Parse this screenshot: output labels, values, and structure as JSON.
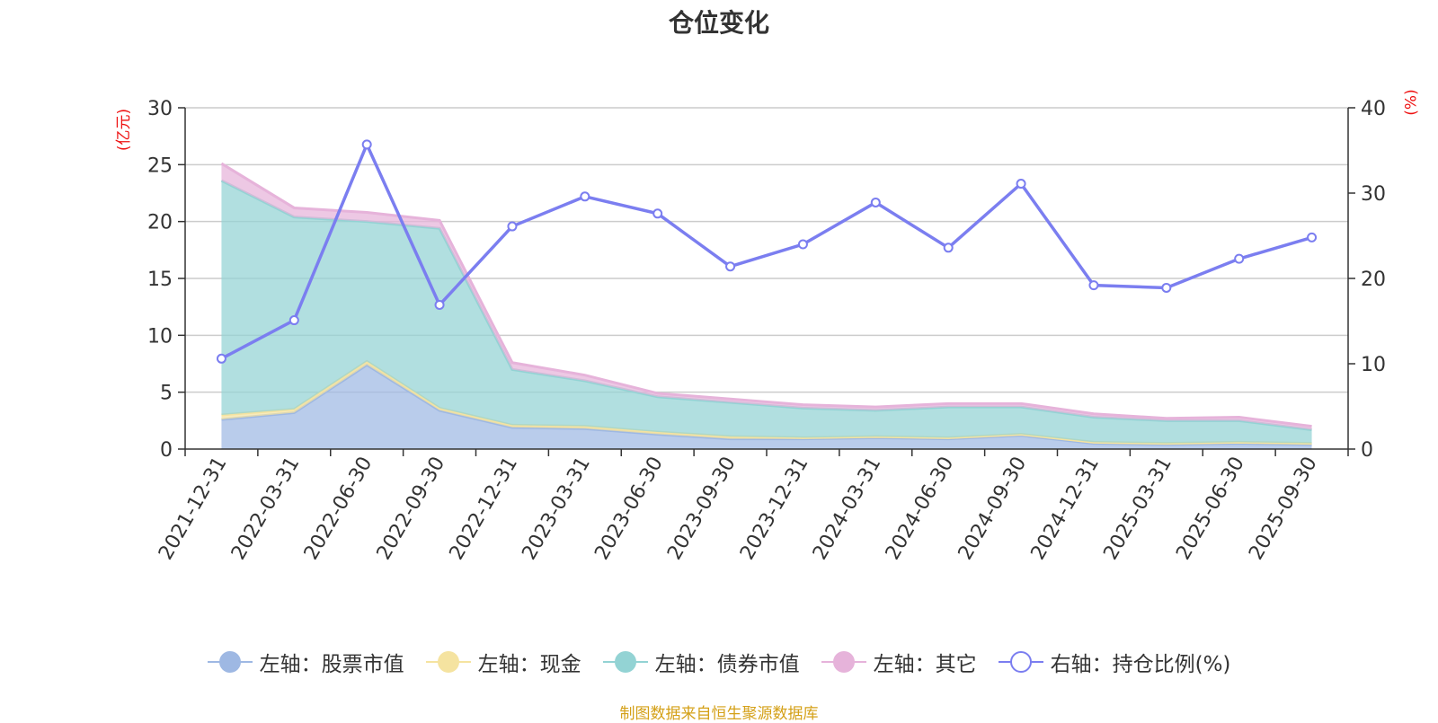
{
  "title": "仓位变化",
  "source_note": "制图数据来自恒生聚源数据库",
  "axis_units": {
    "left": "(亿元)",
    "right": "(%)"
  },
  "colors": {
    "stock": "#9eb8e3",
    "cash": "#f5e3a0",
    "bond": "#93d3d4",
    "other": "#e6b3da",
    "ratio": "#7b7ef0",
    "unit": "#ee1111",
    "grid": "#cccccc"
  },
  "legend": [
    {
      "key": "stock",
      "label": "左轴：股票市值"
    },
    {
      "key": "cash",
      "label": "左轴：现金"
    },
    {
      "key": "bond",
      "label": "左轴：债券市值"
    },
    {
      "key": "other",
      "label": "左轴：其它"
    },
    {
      "key": "ratio",
      "label": "右轴：持仓比例(%)"
    }
  ],
  "chart_data": {
    "type": "area",
    "stacked": true,
    "categories": [
      "2021-12-31",
      "2022-03-31",
      "2022-06-30",
      "2022-09-30",
      "2022-12-31",
      "2023-03-31",
      "2023-06-30",
      "2023-09-30",
      "2023-12-31",
      "2024-03-31",
      "2024-06-30",
      "2024-09-30",
      "2024-12-31",
      "2025-03-31",
      "2025-06-30",
      "2025-09-30"
    ],
    "left_axis": {
      "label": "(亿元)",
      "ylim": [
        0,
        30
      ],
      "ticks": [
        0,
        5,
        10,
        15,
        20,
        25,
        30
      ]
    },
    "right_axis": {
      "label": "(%)",
      "ylim": [
        0,
        40
      ],
      "ticks": [
        0,
        10,
        20,
        30,
        40
      ]
    },
    "series": [
      {
        "name": "左轴：股票市值",
        "axis": "left",
        "stack": true,
        "values": [
          2.6,
          3.2,
          7.4,
          3.4,
          1.9,
          1.8,
          1.3,
          0.9,
          0.9,
          1.0,
          0.9,
          1.2,
          0.5,
          0.4,
          0.5,
          0.4
        ]
      },
      {
        "name": "左轴：现金",
        "axis": "left",
        "stack": true,
        "values": [
          0.4,
          0.3,
          0.3,
          0.2,
          0.2,
          0.2,
          0.2,
          0.2,
          0.1,
          0.1,
          0.1,
          0.1,
          0.1,
          0.1,
          0.1,
          0.1
        ]
      },
      {
        "name": "左轴：债券市值",
        "axis": "left",
        "stack": true,
        "values": [
          20.6,
          16.9,
          12.3,
          15.8,
          4.9,
          4.0,
          3.1,
          3.0,
          2.6,
          2.3,
          2.7,
          2.4,
          2.2,
          2.0,
          1.9,
          1.2
        ]
      },
      {
        "name": "左轴：其它",
        "axis": "left",
        "stack": true,
        "values": [
          1.5,
          0.8,
          0.8,
          0.7,
          0.6,
          0.5,
          0.3,
          0.3,
          0.3,
          0.3,
          0.3,
          0.3,
          0.3,
          0.2,
          0.3,
          0.3
        ]
      },
      {
        "name": "右轴：持仓比例(%)",
        "axis": "right",
        "type": "line",
        "values": [
          10.6,
          15.1,
          35.7,
          16.9,
          26.1,
          29.6,
          27.6,
          21.4,
          24.0,
          28.9,
          23.6,
          31.1,
          19.2,
          18.9,
          22.3,
          24.8
        ]
      }
    ],
    "grid": true,
    "legend_position": "bottom"
  }
}
